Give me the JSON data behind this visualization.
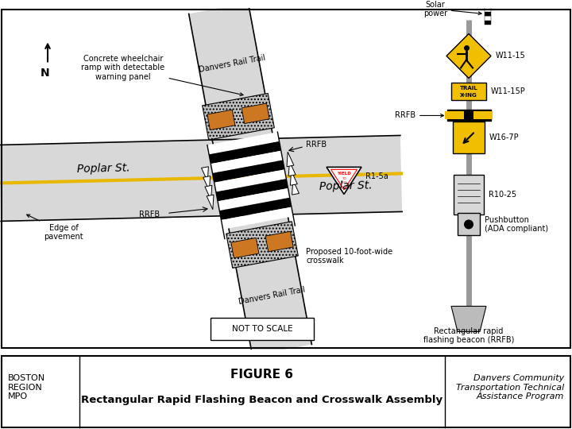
{
  "title": "FIGURE 6",
  "subtitle": "Rectangular Rapid Flashing Beacon and Crosswalk Assembly",
  "left_label": "BOSTON\nREGION\nMPO",
  "right_label": "Danvers Community\nTransportation Technical\nAssistance Program",
  "note_scale": "NOT TO SCALE",
  "annotations": {
    "concrete_ramp": "Concrete wheelchair\nramp with detectable\nwarning panel",
    "edge_pavement": "Edge of\npavement",
    "poplar_st_left": "Poplar St.",
    "poplar_st_right": "Poplar St.",
    "danvers_top": "Danvers Rail Trail",
    "danvers_bottom": "Danvers Rail Trail",
    "rrfb_right": "RRFB",
    "rrfb_left": "RRFB",
    "proposed_crosswalk": "Proposed 10-foot-wide\ncrosswalk",
    "r1_5a": "R1-5a",
    "solar_power": "Solar\npower",
    "w11_15": "W11-15",
    "w11_15p": "W11-15P",
    "w16_7p": "W16-7P",
    "r10_25": "R10-25",
    "pushbutton": "Pushbutton\n(ADA compliant)",
    "rrfb_panel": "RRFB",
    "rect_rapid": "Rectangular rapid\nflashing beacon (RRFB)"
  },
  "colors": {
    "road_fill": "#d8d8d8",
    "yellow_line": "#e8b800",
    "orange_pad": "#cc7722",
    "sign_yellow": "#f0c000",
    "pole_gray": "#aaaaaa",
    "beacon_yellow": "#f0c000",
    "dot_gray": "#c0c0c0",
    "white": "#ffffff",
    "black": "#000000"
  }
}
